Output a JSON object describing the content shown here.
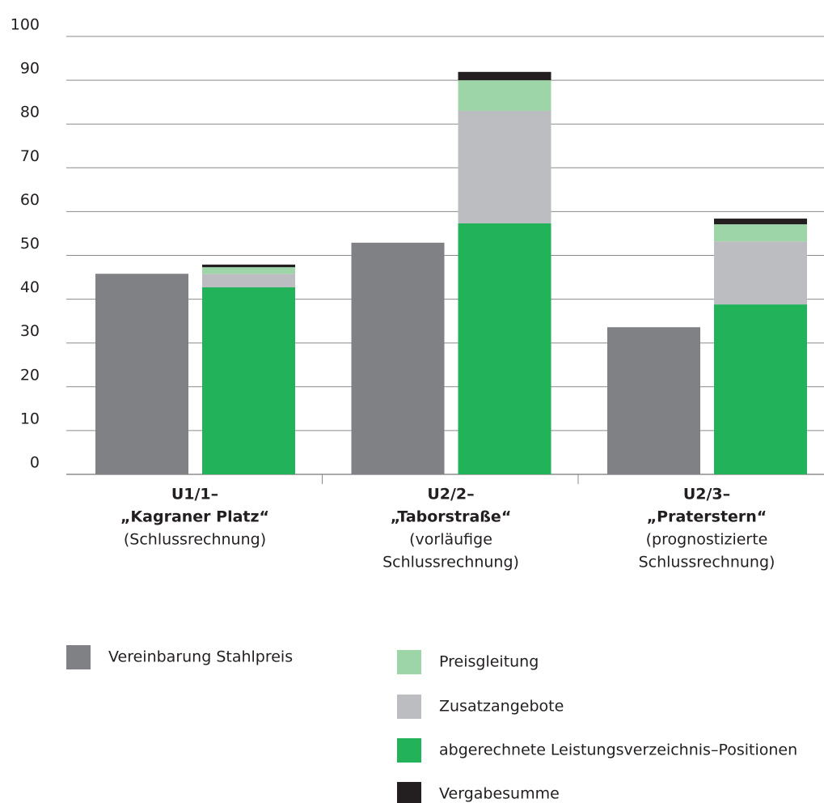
{
  "chart_data": {
    "type": "bar",
    "categories": [
      [
        "U1/1–",
        "„Kagraner Platz“",
        "(Schlussrechnung)"
      ],
      [
        "U2/2–",
        "„Taborstraße“",
        "(vorläufige",
        "Schlussrechnung)"
      ],
      [
        "U2/3–",
        "„Praterstern“",
        "(prognostizierte",
        "Schlussrechnung)"
      ]
    ],
    "series": [
      {
        "name": "Vereinbarung Stahlpreis",
        "color": "#808184",
        "stack": 0,
        "values": [
          45.8,
          52.9,
          33.6
        ]
      },
      {
        "name": "abgerechnete Leistungsverzeichnis–Positionen",
        "color": "#22b25a",
        "stack": 1,
        "values": [
          42.7,
          57.3,
          38.8
        ]
      },
      {
        "name": "Zusatzangebote",
        "color": "#bcbdc0",
        "stack": 1,
        "values": [
          3.1,
          25.7,
          14.4
        ]
      },
      {
        "name": "Preisgleitung",
        "color": "#9dd4a8",
        "stack": 1,
        "values": [
          1.5,
          7.0,
          3.9
        ]
      },
      {
        "name": "Vergabesumme",
        "color": "#231f20",
        "stack": 1,
        "values": [
          0.6,
          1.9,
          1.3
        ]
      }
    ],
    "ylim": [
      0,
      100
    ],
    "yticks": [
      0,
      10,
      20,
      30,
      40,
      50,
      60,
      70,
      80,
      90,
      100
    ],
    "grid": true
  }
}
